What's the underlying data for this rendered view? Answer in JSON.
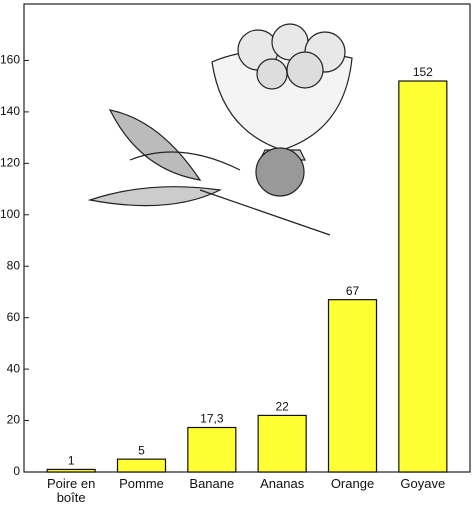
{
  "chart_data": {
    "type": "bar",
    "categories": [
      "Poire en boîte",
      "Pomme",
      "Banane",
      "Ananas",
      "Orange",
      "Goyave"
    ],
    "values": [
      1,
      5,
      17.3,
      22,
      67,
      152
    ],
    "value_labels": [
      "1",
      "5",
      "17,3",
      "22",
      "67",
      "152"
    ],
    "color": "#ffff33",
    "ylim": [
      0,
      180
    ],
    "yticks": [
      0,
      20,
      40,
      60,
      80,
      100,
      120,
      140,
      160
    ]
  }
}
